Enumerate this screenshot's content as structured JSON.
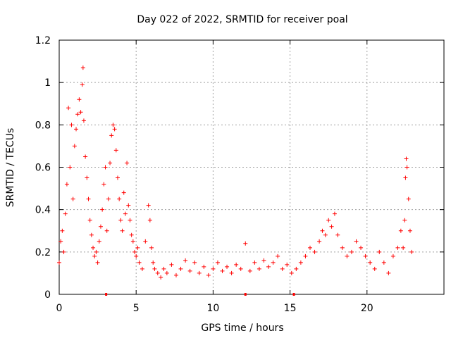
{
  "chart_data": {
    "type": "scatter",
    "title": "Day 022 of 2022, SRMTID for receiver poal",
    "xlabel": "GPS time / hours",
    "ylabel": "SRMTID / TECUs",
    "xlim": [
      0,
      25
    ],
    "ylim": [
      0,
      1.2
    ],
    "grid": true,
    "marker": "+",
    "color": "#ff0000",
    "xticks": [
      0,
      5,
      10,
      15,
      20
    ],
    "xtick_labels": [
      "0",
      "5",
      "10",
      "15",
      "20"
    ],
    "yticks": [
      0,
      0.2,
      0.4,
      0.6,
      0.8,
      1.0,
      1.2
    ],
    "ytick_labels": [
      "0",
      "0.2",
      "0.4",
      "0.6",
      "0.8",
      "1",
      "1.2"
    ],
    "series": [
      {
        "name": "SRMTID",
        "x": [
          0.0,
          0.1,
          0.2,
          0.3,
          0.4,
          0.5,
          0.6,
          0.7,
          0.8,
          0.9,
          1.0,
          1.1,
          1.2,
          1.3,
          1.4,
          1.5,
          1.55,
          1.6,
          1.7,
          1.8,
          1.9,
          2.0,
          2.1,
          2.2,
          2.3,
          2.4,
          2.5,
          2.6,
          2.7,
          2.8,
          2.9,
          3.0,
          3.1,
          3.2,
          3.3,
          3.4,
          3.5,
          3.6,
          3.7,
          3.8,
          3.9,
          4.0,
          4.1,
          4.2,
          4.3,
          4.4,
          4.5,
          4.6,
          4.7,
          4.8,
          4.9,
          5.0,
          5.1,
          5.2,
          5.4,
          5.6,
          5.8,
          5.9,
          6.0,
          6.1,
          6.2,
          6.4,
          6.6,
          6.8,
          7.0,
          7.3,
          7.6,
          7.9,
          8.2,
          8.5,
          8.8,
          9.1,
          9.4,
          9.7,
          10.0,
          10.3,
          10.6,
          10.9,
          11.2,
          11.5,
          11.8,
          12.1,
          12.4,
          12.7,
          13.0,
          13.3,
          13.6,
          13.9,
          14.2,
          14.5,
          14.8,
          15.1,
          15.4,
          15.7,
          16.0,
          16.3,
          16.6,
          16.9,
          17.1,
          17.3,
          17.5,
          17.7,
          17.9,
          18.1,
          18.4,
          18.7,
          19.0,
          19.3,
          19.6,
          19.9,
          20.2,
          20.5,
          20.8,
          21.1,
          21.4,
          21.7,
          22.0,
          22.2,
          22.35,
          22.45,
          22.5,
          22.55,
          22.6,
          22.7,
          22.8,
          22.9
        ],
        "y": [
          0.15,
          0.25,
          0.3,
          0.2,
          0.38,
          0.52,
          0.88,
          0.6,
          0.8,
          0.45,
          0.7,
          0.78,
          0.85,
          0.92,
          0.86,
          0.99,
          1.07,
          0.82,
          0.65,
          0.55,
          0.45,
          0.35,
          0.28,
          0.22,
          0.18,
          0.2,
          0.15,
          0.25,
          0.32,
          0.4,
          0.52,
          0.6,
          0.3,
          0.45,
          0.62,
          0.75,
          0.8,
          0.78,
          0.68,
          0.55,
          0.45,
          0.35,
          0.3,
          0.48,
          0.38,
          0.62,
          0.42,
          0.35,
          0.28,
          0.25,
          0.2,
          0.18,
          0.22,
          0.15,
          0.12,
          0.25,
          0.42,
          0.35,
          0.22,
          0.15,
          0.12,
          0.1,
          0.08,
          0.12,
          0.1,
          0.14,
          0.09,
          0.12,
          0.16,
          0.11,
          0.15,
          0.1,
          0.13,
          0.09,
          0.12,
          0.15,
          0.11,
          0.13,
          0.1,
          0.14,
          0.12,
          0.24,
          0.11,
          0.15,
          0.12,
          0.16,
          0.13,
          0.15,
          0.18,
          0.12,
          0.14,
          0.1,
          0.12,
          0.15,
          0.18,
          0.22,
          0.2,
          0.25,
          0.3,
          0.28,
          0.35,
          0.32,
          0.38,
          0.28,
          0.22,
          0.18,
          0.2,
          0.25,
          0.22,
          0.18,
          0.15,
          0.12,
          0.2,
          0.15,
          0.1,
          0.18,
          0.22,
          0.3,
          0.22,
          0.35,
          0.55,
          0.64,
          0.6,
          0.45,
          0.3,
          0.2
        ]
      }
    ],
    "axis_markers_x": [
      3.05,
      12.1,
      15.25
    ]
  }
}
